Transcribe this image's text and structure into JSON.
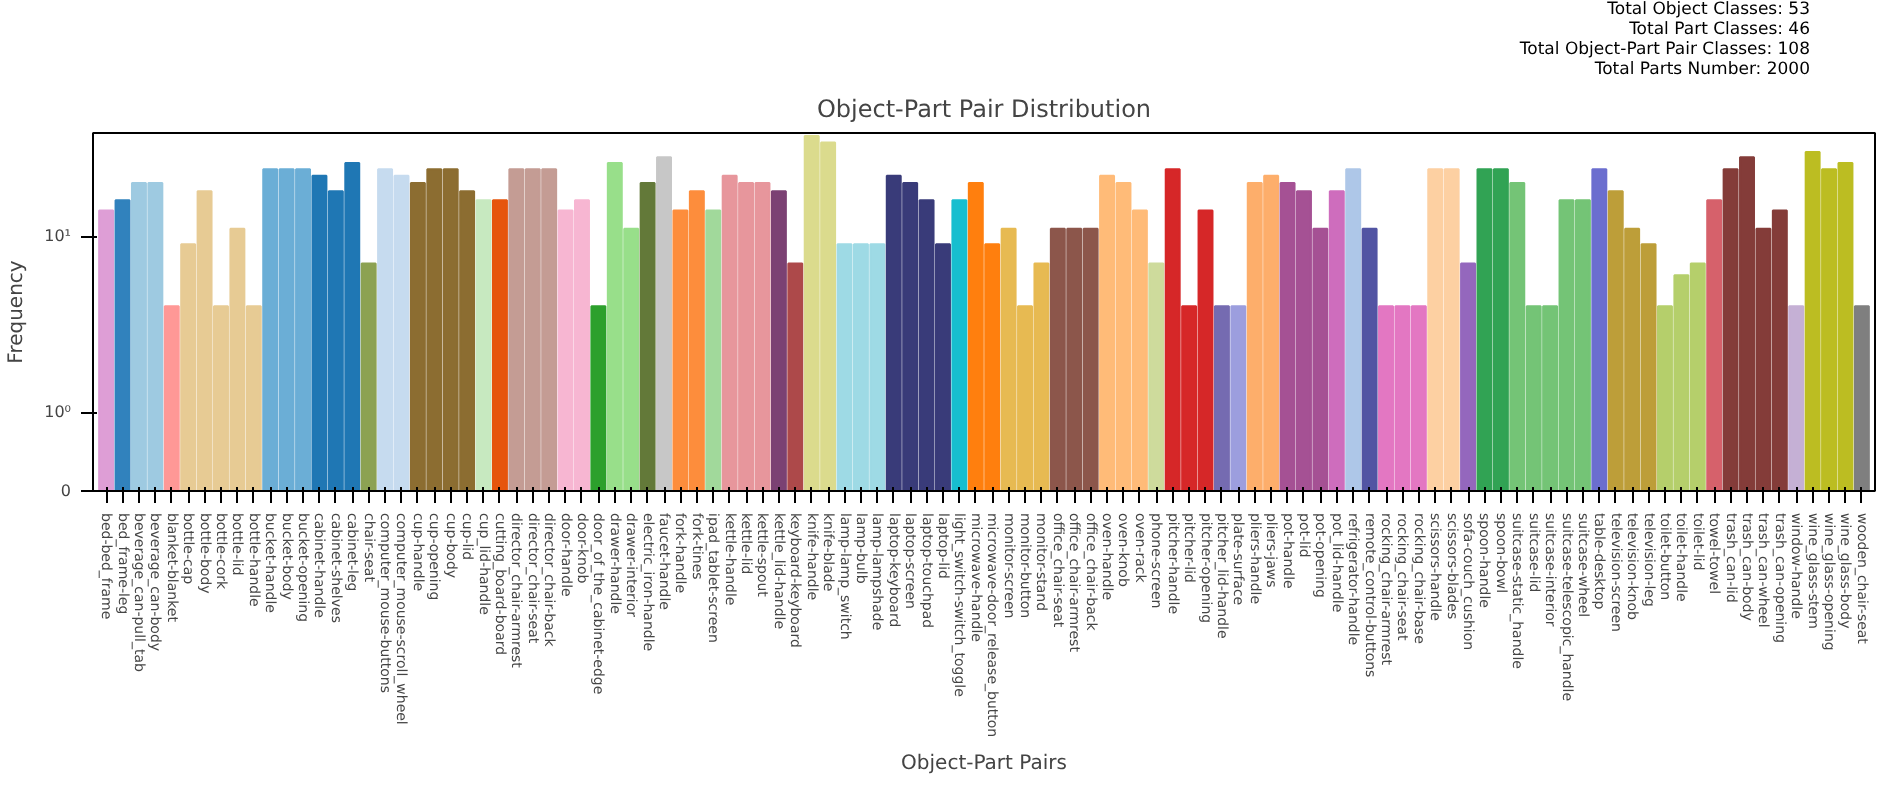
{
  "chart_data": {
    "type": "bar",
    "title": "Object-Part Pair Distribution",
    "xlabel": "Object-Part Pairs",
    "ylabel": "Frequency",
    "categories": [
      "bed-bed_frame",
      "bed_frame-leg",
      "beverage_can-pull_tab",
      "beverage_can-body",
      "blanket-blanket",
      "bottle-cap",
      "bottle-body",
      "bottle-cork",
      "bottle-lid",
      "bottle-handle",
      "bucket-handle",
      "bucket-body",
      "bucket-opening",
      "cabinet-handle",
      "cabinet-shelves",
      "cabinet-leg",
      "chair-seat",
      "computer_mouse-buttons",
      "computer_mouse-scroll_wheel",
      "cup-handle",
      "cup-opening",
      "cup-body",
      "cup-lid",
      "cup_lid-handle",
      "cutting_board-board",
      "director_chair-armrest",
      "director_chair-seat",
      "director_chair-back",
      "door-handle",
      "door-knob",
      "door_of_the_cabinet-edge",
      "drawer-handle",
      "drawer-interior",
      "electric_iron-handle",
      "faucet-handle",
      "fork-handle",
      "fork-tines",
      "ipad_tablet-screen",
      "kettle-handle",
      "kettle-lid",
      "kettle-spout",
      "kettle_lid-handle",
      "keyboard-keyboard",
      "knife-handle",
      "knife-blade",
      "lamp-lamp_switch",
      "lamp-bulb",
      "lamp-lampshade",
      "laptop-keyboard",
      "laptop-screen",
      "laptop-touchpad",
      "laptop-lid",
      "light_switch-switch_toggle",
      "microwave-handle",
      "microwave-door_release_button",
      "monitor-screen",
      "monitor-button",
      "monitor-stand",
      "office_chair-seat",
      "office_chair-armrest",
      "office_chair-back",
      "oven-handle",
      "oven-knob",
      "oven-rack",
      "phone-screen",
      "pitcher-handle",
      "pitcher-lid",
      "pitcher-opening",
      "pitcher_lid-handle",
      "plate-surface",
      "pliers-handle",
      "pliers-jaws",
      "pot-handle",
      "pot-lid",
      "pot-opening",
      "pot_lid-handle",
      "refrigerator-handle",
      "remote_control-buttons",
      "rocking_chair-armrest",
      "rocking_chair-seat",
      "rocking_chair-base",
      "scissors-handle",
      "scissors-blades",
      "sofa-couch_cushion",
      "spoon-handle",
      "spoon-bowl",
      "suitcase-static_handle",
      "suitcase-lid",
      "suitcase-interior",
      "suitcase-telescopic_handle",
      "suitcase-wheel",
      "table-desktop",
      "television-screen",
      "television-knob",
      "television-leg",
      "toilet-button",
      "toilet-handle",
      "toilet-lid",
      "towel-towel",
      "trash_can-lid",
      "trash_can-body",
      "trash_can-wheel",
      "trash_can-opening",
      "window-handle",
      "wine_glass-stem",
      "wine_glass-opening",
      "wine_glass-body",
      "wooden_chair-seat"
    ],
    "values": [
      14,
      16,
      20,
      20,
      4,
      9,
      18,
      4,
      11,
      4,
      24,
      24,
      24,
      22,
      18,
      26,
      7,
      24,
      22,
      20,
      24,
      24,
      18,
      16,
      16,
      24,
      24,
      24,
      14,
      16,
      4,
      26,
      11,
      20,
      28,
      14,
      18,
      14,
      22,
      20,
      20,
      18,
      7,
      37,
      34,
      9,
      9,
      9,
      22,
      20,
      16,
      9,
      16,
      20,
      9,
      11,
      4,
      7,
      11,
      11,
      11,
      22,
      20,
      14,
      7,
      24,
      4,
      14,
      4,
      4,
      20,
      22,
      20,
      18,
      11,
      18,
      24,
      11,
      4,
      4,
      4,
      24,
      24,
      7,
      24,
      24,
      20,
      4,
      4,
      16,
      16,
      24,
      18,
      11,
      9,
      4,
      6,
      7,
      16,
      24,
      28,
      11,
      14,
      4,
      30,
      24,
      26,
      4
    ],
    "colors": [
      "#de9ed6",
      "#3182bd",
      "#9ecae1",
      "#9ecae1",
      "#ff9896",
      "#e7cb94",
      "#e7cb94",
      "#e7cb94",
      "#e7cb94",
      "#e7cb94",
      "#6baed6",
      "#6baed6",
      "#6baed6",
      "#1f77b4",
      "#1f77b4",
      "#1f77b4",
      "#8ca252",
      "#c6dbef",
      "#c6dbef",
      "#8c6d31",
      "#8c6d31",
      "#8c6d31",
      "#8c6d31",
      "#c7e9c0",
      "#e6550d",
      "#c49c94",
      "#c49c94",
      "#c49c94",
      "#f7b6d2",
      "#f7b6d2",
      "#2ca02c",
      "#98df8a",
      "#98df8a",
      "#637939",
      "#c7c7c7",
      "#fd8d3c",
      "#fd8d3c",
      "#a1d99b",
      "#e7969c",
      "#e7969c",
      "#e7969c",
      "#7b4173",
      "#ad494a",
      "#dbdb8d",
      "#dbdb8d",
      "#9edae5",
      "#9edae5",
      "#9edae5",
      "#393b79",
      "#393b79",
      "#393b79",
      "#393b79",
      "#17becf",
      "#ff7f0e",
      "#ff7f0e",
      "#e7ba52",
      "#e7ba52",
      "#e7ba52",
      "#8c564b",
      "#8c564b",
      "#8c564b",
      "#ffbb78",
      "#ffbb78",
      "#ffbb78",
      "#cedb9c",
      "#d62728",
      "#d62728",
      "#d62728",
      "#756bb1",
      "#9c9ede",
      "#fdae6b",
      "#fdae6b",
      "#a55194",
      "#a55194",
      "#a55194",
      "#ce6dbd",
      "#aec7e8",
      "#5254a3",
      "#e377c2",
      "#e377c2",
      "#e377c2",
      "#fdd0a2",
      "#fdd0a2",
      "#9467bd",
      "#31a354",
      "#31a354",
      "#74c476",
      "#74c476",
      "#74c476",
      "#74c476",
      "#74c476",
      "#6b6ecf",
      "#bd9e39",
      "#bd9e39",
      "#bd9e39",
      "#b5cf6b",
      "#b5cf6b",
      "#b5cf6b",
      "#d6616b",
      "#843c39",
      "#843c39",
      "#843c39",
      "#843c39",
      "#c5b0d5",
      "#bcbd22",
      "#bcbd22",
      "#bcbd22",
      "#7f7f7f"
    ],
    "log": true,
    "ylim": [
      0,
      38.5
    ],
    "yticks": [
      0,
      {
        "value": 1,
        "label": "10⁰"
      },
      {
        "value": 10,
        "label": "10¹"
      }
    ],
    "grid": false,
    "annotations": [
      "Total Object Classes: 53",
      "Total Part Classes: 46",
      "Total Object-Part Pair Classes: 108",
      "Total Parts Number: 2000"
    ]
  }
}
